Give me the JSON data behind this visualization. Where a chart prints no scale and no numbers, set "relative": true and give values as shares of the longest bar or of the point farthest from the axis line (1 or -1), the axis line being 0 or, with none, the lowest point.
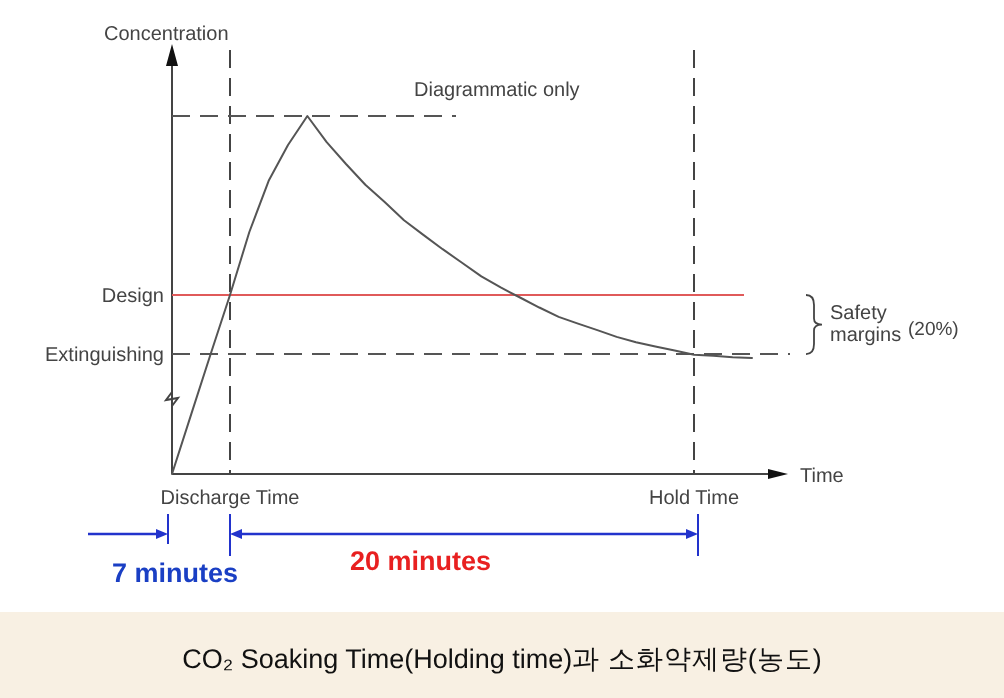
{
  "chart_data": {
    "type": "line",
    "title": "CO₂ Soaking Time(Holding time)과 소화약제량(농도)",
    "xlabel": "Time",
    "ylabel": "Concentration",
    "relative": true,
    "categories": [
      null,
      null,
      null,
      "Discharge Time",
      null,
      null,
      null,
      null,
      null,
      null,
      null,
      null,
      null,
      null,
      null,
      null,
      null,
      null,
      null,
      null,
      null,
      null,
      null,
      null,
      null,
      null,
      null,
      "Hold Time",
      null,
      null,
      null
    ],
    "series": [
      {
        "color": "#555555",
        "values": [
          0,
          0.168,
          0.335,
          0.5,
          0.676,
          0.819,
          0.919,
          1,
          0.927,
          0.866,
          0.808,
          0.76,
          0.709,
          0.668,
          0.628,
          0.59,
          0.552,
          0.521,
          0.493,
          0.465,
          0.439,
          0.42,
          0.402,
          0.383,
          0.368,
          0.356,
          0.345,
          0.333,
          0.33,
          0.326,
          0.324
        ]
      }
    ],
    "line_style": "solid",
    "grid": "x",
    "ref_lines": [
      {
        "axis": "y",
        "value": 1,
        "color": "#555555",
        "line_style": "dashed"
      },
      {
        "axis": "y",
        "value": 0.5,
        "label": "Design",
        "color": "#e05a5a",
        "line_style": "solid"
      },
      {
        "axis": "y",
        "value": 0.335,
        "label": "Extinguishing",
        "color": "#555555",
        "line_style": "dashed"
      }
    ],
    "annotations": [
      "Diagrammatic only",
      "Safety margins",
      "(20%)",
      "7 minutes",
      "20 minutes"
    ]
  }
}
